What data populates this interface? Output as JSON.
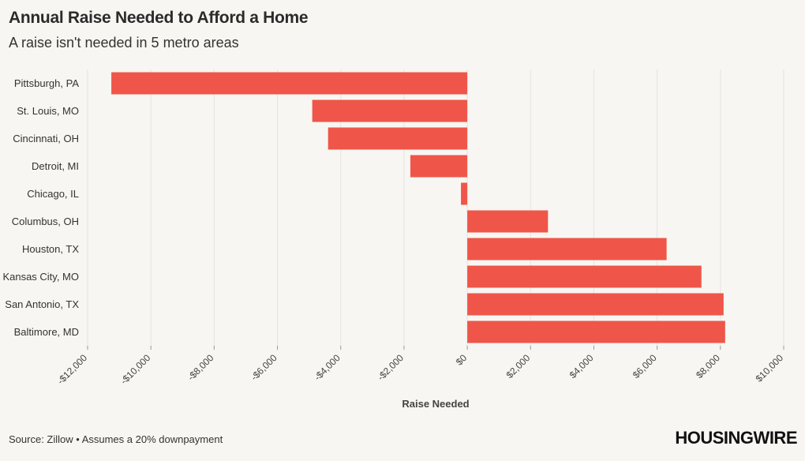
{
  "header": {
    "title": "Annual Raise Needed to Afford a Home",
    "subtitle": "A raise isn't needed in 5 metro areas"
  },
  "footer": {
    "source": "Source: Zillow • Assumes a 20% downpayment",
    "logo": "HOUSINGWIRE"
  },
  "colors": {
    "bar": "#ef5649",
    "grid": "#e6e3de",
    "background": "#f8f6f2"
  },
  "chart_data": {
    "type": "bar",
    "orientation": "horizontal",
    "title": "Annual Raise Needed to Afford a Home",
    "subtitle": "A raise isn't needed in 5 metro areas",
    "xlabel": "Raise Needed",
    "ylabel": "",
    "xlim": [
      -12000,
      10000
    ],
    "grid": true,
    "categories": [
      "Pittsburgh, PA",
      "St. Louis, MO",
      "Cincinnati, OH",
      "Detroit, MI",
      "Chicago, IL",
      "Columbus, OH",
      "Houston, TX",
      "Kansas City, MO",
      "San Antonio, TX",
      "Baltimore, MD"
    ],
    "values": [
      -11250,
      -4900,
      -4400,
      -1800,
      -200,
      2550,
      6300,
      7400,
      8100,
      8150
    ],
    "ticks": [
      -12000,
      -10000,
      -8000,
      -6000,
      -4000,
      -2000,
      0,
      2000,
      4000,
      6000,
      8000,
      10000
    ],
    "tick_labels": [
      "-$12,000",
      "-$10,000",
      "-$8,000",
      "-$6,000",
      "-$4,000",
      "-$2,000",
      "$0",
      "$2,000",
      "$4,000",
      "$6,000",
      "$8,000",
      "$10,000"
    ]
  }
}
